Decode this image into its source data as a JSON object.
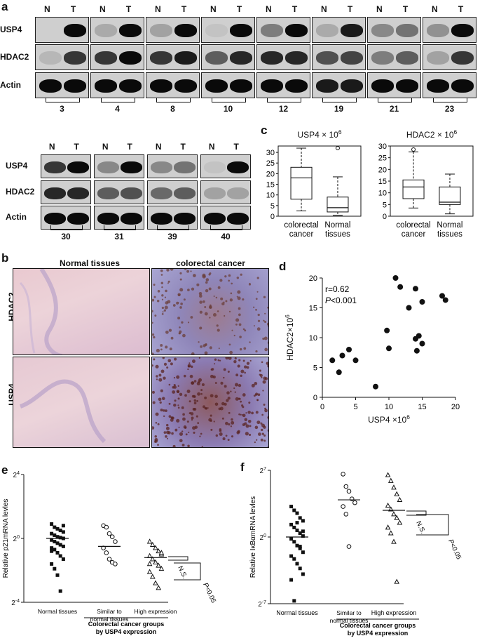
{
  "panels": {
    "a": "a",
    "b": "b",
    "c": "c",
    "d": "d",
    "e": "e",
    "f": "f"
  },
  "western": {
    "lane_labels": {
      "n": "N",
      "t": "T"
    },
    "rows": [
      "USP4",
      "HDAC2",
      "Actin"
    ],
    "top_samples": [
      "3",
      "4",
      "8",
      "10",
      "12",
      "19",
      "21",
      "23"
    ],
    "bottom_samples": [
      "30",
      "31",
      "39",
      "40"
    ]
  },
  "histology": {
    "columns": [
      "Normal tissues",
      "colorectal  cancer"
    ],
    "rows": [
      "HDAC2",
      "USP4"
    ]
  },
  "chart_data": [
    {
      "type": "box",
      "title": "USP4 × 10",
      "title_exp": "6",
      "categories": [
        "colorectal\ncancer",
        "Normal\ntissues"
      ],
      "category_lines": [
        [
          "colorectal",
          "cancer"
        ],
        [
          "Normal",
          "tissues"
        ]
      ],
      "yticks": [
        0,
        5,
        10,
        15,
        20,
        25,
        30
      ],
      "ylim": [
        0,
        33
      ],
      "boxes": [
        {
          "min": 2.5,
          "q1": 8,
          "median": 18,
          "q3": 23,
          "max": 32,
          "outliers": []
        },
        {
          "min": 0.5,
          "q1": 2,
          "median": 4,
          "q3": 9,
          "max": 18.5,
          "outliers": [
            32
          ]
        }
      ]
    },
    {
      "type": "box",
      "title": "HDAC2 × 10",
      "title_exp": "6",
      "categories": [
        "colorectal\ncancer",
        "Normal\ntissues"
      ],
      "category_lines": [
        [
          "colorectal",
          "cancer"
        ],
        [
          "Normal",
          "tissues"
        ]
      ],
      "yticks": [
        0,
        5,
        10,
        15,
        20,
        25,
        30
      ],
      "ylim": [
        0,
        30
      ],
      "boxes": [
        {
          "min": 3.5,
          "q1": 7.5,
          "median": 12.5,
          "q3": 15.5,
          "max": 27.5,
          "outliers": [
            28.5
          ]
        },
        {
          "min": 1,
          "q1": 5,
          "median": 6,
          "q3": 12.5,
          "max": 18,
          "outliers": []
        }
      ]
    },
    {
      "type": "scatter",
      "xlabel": "USP4 ×10",
      "xlabel_exp": "6",
      "ylabel": "HDAC2×10",
      "ylabel_exp": "6",
      "annotations": [
        "r=0.62",
        "P<0.001"
      ],
      "xticks": [
        0,
        5,
        10,
        15,
        20
      ],
      "yticks": [
        0,
        5,
        10,
        15,
        20
      ],
      "xlim": [
        0,
        20
      ],
      "ylim": [
        0,
        20
      ],
      "points": [
        [
          1.5,
          6.2
        ],
        [
          2.5,
          4.2
        ],
        [
          3,
          7
        ],
        [
          4,
          8
        ],
        [
          5,
          6.2
        ],
        [
          8,
          1.8
        ],
        [
          9.7,
          11.2
        ],
        [
          10,
          8.2
        ],
        [
          11,
          20
        ],
        [
          11.7,
          18.5
        ],
        [
          13,
          15
        ],
        [
          14,
          18.2
        ],
        [
          14,
          9.8
        ],
        [
          14.2,
          7.8
        ],
        [
          14.5,
          10.3
        ],
        [
          15,
          16
        ],
        [
          15,
          9
        ],
        [
          18,
          17
        ],
        [
          18.5,
          16.3
        ]
      ]
    },
    {
      "type": "scatter",
      "ylabel": "Relative p21mRNA levles",
      "yticks": [
        {
          "base": "2",
          "exp": "4",
          "v": 4
        },
        {
          "base": "2",
          "exp": "0",
          "v": 0
        },
        {
          "base": "2",
          "exp": "-4",
          "v": -4
        }
      ],
      "ylim": [
        -4,
        4
      ],
      "categories": [
        "Normal  tissues",
        "Similar to\nnormal tissues",
        "High expression"
      ],
      "category_lines": [
        [
          "Normal  tissues"
        ],
        [
          "Similar to",
          "normal tissues"
        ],
        [
          "High expression"
        ]
      ],
      "group_caption": [
        "Colorectal cancer groups",
        "by USP4 expression"
      ],
      "significance": [
        "N.S.",
        "P<0.05"
      ],
      "series": [
        {
          "name": "Normal  tissues",
          "marker": "square",
          "median": 0,
          "values": [
            0.9,
            0.7,
            0.6,
            0.5,
            0.4,
            0.3,
            0.2,
            0.1,
            0.05,
            0,
            -0.1,
            -0.2,
            -0.3,
            -0.4,
            -0.5,
            -0.6,
            -0.7,
            -0.9,
            -1.1,
            -1.3,
            -1.6,
            -1.9,
            -2.3,
            -3.3,
            0.8,
            -0.8
          ]
        },
        {
          "name": "Similar to normal tissues",
          "marker": "circle",
          "median": -0.5,
          "values": [
            0.8,
            0.7,
            0.3,
            0.1,
            -0.2,
            -0.6,
            -0.9,
            -1.3,
            -1.5,
            -1.6
          ]
        },
        {
          "name": "High expression",
          "marker": "triangle",
          "median": -1.2,
          "values": [
            -0.2,
            -0.4,
            -0.6,
            -0.8,
            -1.0,
            -1.1,
            -1.3,
            -1.5,
            -1.7,
            -1.9,
            -2.1,
            -2.4,
            -2.8,
            -3.1,
            -0.9,
            -1.6
          ]
        }
      ]
    },
    {
      "type": "scatter",
      "ylabel": "Relative IκBαmRNA levles",
      "yticks": [
        {
          "base": "2",
          "exp": "7",
          "v": 7
        },
        {
          "base": "2",
          "exp": "0",
          "v": 0
        },
        {
          "base": "2",
          "exp": "-7",
          "v": -7
        }
      ],
      "ylim": [
        -7,
        7
      ],
      "categories": [
        "Normal  tissues",
        "Similar to\nnormal tissues",
        "High expression"
      ],
      "category_lines": [
        [
          "Normal  tissues"
        ],
        [
          "Similar to",
          "normal tissues"
        ],
        [
          "High expression"
        ]
      ],
      "group_caption": [
        "Colorectal cancer groups",
        "by USP4 expression"
      ],
      "significance": [
        "N.S.",
        "P<0.05"
      ],
      "series": [
        {
          "name": "Normal  tissues",
          "marker": "square",
          "median": 0,
          "values": [
            3.2,
            2.8,
            2.5,
            2,
            1.7,
            1.3,
            1,
            0.7,
            0.4,
            0.1,
            -0.2,
            -0.5,
            -0.9,
            -1.2,
            -1.6,
            -2,
            -2.3,
            -2.8,
            -3.3,
            -3.9,
            -4.5,
            -6.7,
            1.5,
            -1.0,
            0.6
          ]
        },
        {
          "name": "Similar to normal tissues",
          "marker": "circle",
          "median": 3.9,
          "values": [
            6.6,
            5.3,
            4.8,
            4,
            3.6,
            3.2,
            2.4,
            -1
          ]
        },
        {
          "name": "High expression",
          "marker": "triangle",
          "median": 2.8,
          "values": [
            6.5,
            5.9,
            5.2,
            4.5,
            3.9,
            3.3,
            2.9,
            2.4,
            2,
            1.5,
            1,
            0.4,
            -0.5,
            -4.7
          ]
        }
      ]
    }
  ]
}
